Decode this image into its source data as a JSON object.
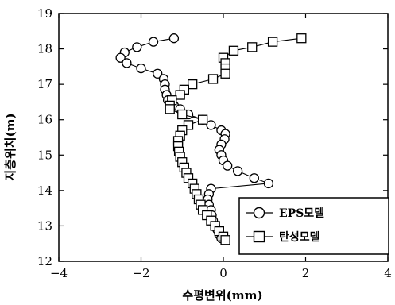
{
  "chart_data": {
    "type": "line",
    "xlabel": "수평변위(mm)",
    "ylabel": "지층위치(m)",
    "xlim": [
      -4,
      4
    ],
    "ylim": [
      12,
      19
    ],
    "xticks": [
      -4,
      -2,
      0,
      2,
      4
    ],
    "yticks": [
      12,
      13,
      14,
      15,
      16,
      17,
      18,
      19
    ],
    "legend_position": "bottom-right",
    "series": [
      {
        "name": "EPS모델",
        "marker": "circle",
        "points": [
          [
            -1.2,
            18.3
          ],
          [
            -1.7,
            18.2
          ],
          [
            -2.1,
            18.05
          ],
          [
            -2.4,
            17.9
          ],
          [
            -2.5,
            17.75
          ],
          [
            -2.35,
            17.6
          ],
          [
            -2.0,
            17.45
          ],
          [
            -1.6,
            17.3
          ],
          [
            -1.45,
            17.15
          ],
          [
            -1.42,
            17.0
          ],
          [
            -1.42,
            16.85
          ],
          [
            -1.38,
            16.7
          ],
          [
            -1.35,
            16.55
          ],
          [
            -1.2,
            16.4
          ],
          [
            -1.05,
            16.3
          ],
          [
            -0.85,
            16.15
          ],
          [
            -0.5,
            16.0
          ],
          [
            -0.3,
            15.85
          ],
          [
            -0.05,
            15.7
          ],
          [
            0.05,
            15.6
          ],
          [
            0.03,
            15.45
          ],
          [
            -0.05,
            15.3
          ],
          [
            -0.1,
            15.15
          ],
          [
            -0.05,
            15.0
          ],
          [
            0.0,
            14.85
          ],
          [
            0.1,
            14.7
          ],
          [
            0.35,
            14.55
          ],
          [
            0.75,
            14.35
          ],
          [
            1.1,
            14.2
          ],
          [
            -0.3,
            14.05
          ],
          [
            -0.35,
            13.9
          ],
          [
            -0.38,
            13.75
          ],
          [
            -0.35,
            13.6
          ],
          [
            -0.3,
            13.45
          ],
          [
            -0.28,
            13.3
          ],
          [
            -0.25,
            13.15
          ],
          [
            -0.2,
            13.0
          ],
          [
            -0.15,
            12.9
          ],
          [
            -0.1,
            12.75
          ],
          [
            -0.05,
            12.65
          ]
        ]
      },
      {
        "name": "탄성모델",
        "marker": "square",
        "points": [
          [
            1.9,
            18.3
          ],
          [
            1.2,
            18.2
          ],
          [
            0.7,
            18.05
          ],
          [
            0.25,
            17.95
          ],
          [
            0.0,
            17.75
          ],
          [
            0.05,
            17.6
          ],
          [
            0.05,
            17.45
          ],
          [
            0.05,
            17.3
          ],
          [
            -0.25,
            17.15
          ],
          [
            -0.75,
            17.0
          ],
          [
            -0.95,
            16.85
          ],
          [
            -1.05,
            16.7
          ],
          [
            -1.25,
            16.55
          ],
          [
            -1.3,
            16.4
          ],
          [
            -1.3,
            16.3
          ],
          [
            -1.0,
            16.15
          ],
          [
            -0.5,
            16.0
          ],
          [
            -0.85,
            15.85
          ],
          [
            -1.0,
            15.7
          ],
          [
            -1.05,
            15.55
          ],
          [
            -1.1,
            15.4
          ],
          [
            -1.1,
            15.25
          ],
          [
            -1.08,
            15.1
          ],
          [
            -1.05,
            14.95
          ],
          [
            -1.0,
            14.8
          ],
          [
            -0.95,
            14.65
          ],
          [
            -0.9,
            14.5
          ],
          [
            -0.85,
            14.35
          ],
          [
            -0.75,
            14.2
          ],
          [
            -0.7,
            14.05
          ],
          [
            -0.65,
            13.9
          ],
          [
            -0.6,
            13.75
          ],
          [
            -0.55,
            13.6
          ],
          [
            -0.5,
            13.45
          ],
          [
            -0.4,
            13.3
          ],
          [
            -0.3,
            13.15
          ],
          [
            -0.2,
            13.0
          ],
          [
            -0.1,
            12.85
          ],
          [
            0.0,
            12.7
          ],
          [
            0.05,
            12.6
          ]
        ]
      }
    ]
  }
}
